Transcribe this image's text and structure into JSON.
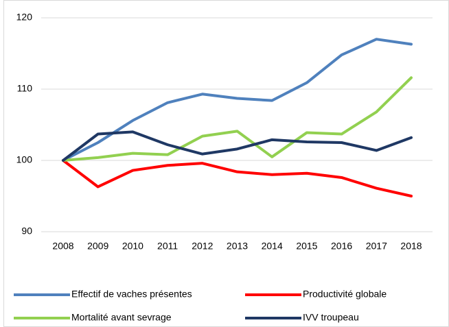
{
  "chart_data": {
    "type": "line",
    "categories": [
      "2008",
      "2009",
      "2010",
      "2011",
      "2012",
      "2013",
      "2014",
      "2015",
      "2016",
      "2017",
      "2018"
    ],
    "series": [
      {
        "name": "Effectif de vaches présentes",
        "color": "#4f81bd",
        "values": [
          100,
          102.5,
          105.6,
          108.1,
          109.3,
          108.7,
          108.4,
          110.9,
          114.8,
          117.0,
          116.3
        ]
      },
      {
        "name": "Productivité globale",
        "color": "#ff0000",
        "values": [
          100,
          96.3,
          98.6,
          99.3,
          99.6,
          98.4,
          98.0,
          98.2,
          97.6,
          96.1,
          95.0
        ]
      },
      {
        "name": "Mortalité avant sevrage",
        "color": "#92d050",
        "values": [
          100,
          100.4,
          101.0,
          100.8,
          103.4,
          104.1,
          100.5,
          103.9,
          103.7,
          106.8,
          111.6
        ]
      },
      {
        "name": "IVV troupeau",
        "color": "#1f3864",
        "values": [
          100,
          103.7,
          104.0,
          102.2,
          100.9,
          101.6,
          102.9,
          102.6,
          102.5,
          101.4,
          103.2
        ]
      }
    ],
    "ylim": [
      90,
      120
    ],
    "yticks": [
      90,
      100,
      110,
      120
    ],
    "grid": true,
    "legend": "bottom"
  }
}
